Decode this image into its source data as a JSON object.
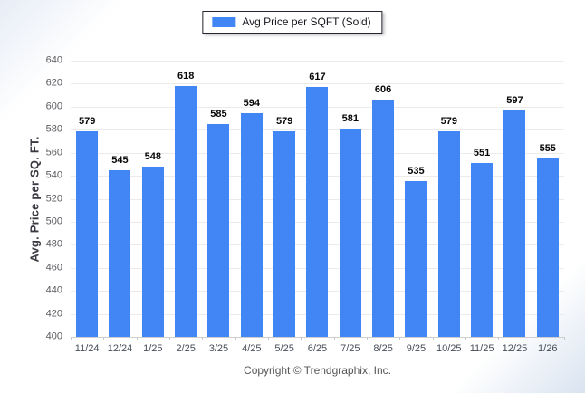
{
  "legend": {
    "label": "Avg Price per SQFT (Sold)",
    "swatch_color": "#4285f4"
  },
  "chart_data": {
    "type": "bar",
    "title": "",
    "categories": [
      "11/24",
      "12/24",
      "1/25",
      "2/25",
      "3/25",
      "4/25",
      "5/25",
      "6/25",
      "7/25",
      "8/25",
      "9/25",
      "10/25",
      "11/25",
      "12/25",
      "1/26"
    ],
    "values": [
      579,
      545,
      548,
      618,
      585,
      594,
      579,
      617,
      581,
      606,
      535,
      579,
      551,
      597,
      555
    ],
    "series_name": "Avg Price per SQFT (Sold)",
    "xlabel": "",
    "ylabel": "Avg. Price per SQ. FT.",
    "ylim": [
      400,
      640
    ],
    "ytick_step": 20,
    "grid": "horizontal",
    "legend_position": "top-center",
    "bar_color": "#4285f4",
    "value_labels": true
  },
  "footer": {
    "copyright": "Copyright © Trendgraphix, Inc."
  }
}
